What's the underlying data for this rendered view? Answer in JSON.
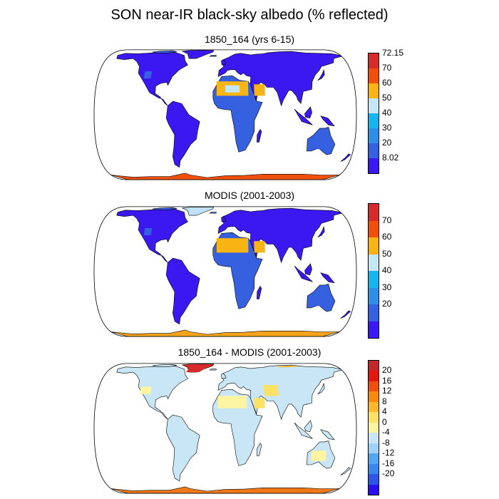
{
  "figure": {
    "title": "SON near-IR black-sky albedo (% reflected)"
  },
  "panels": [
    {
      "title": "1850_164 (yrs 6-15)",
      "colorbar": {
        "colors": [
          "#3b18f0",
          "#3560e0",
          "#2f8fe6",
          "#17b5f0",
          "#c4e6f5",
          "#f7b412",
          "#f0500c",
          "#d62b2b"
        ],
        "labels": [
          "72.15",
          "70",
          "60",
          "50",
          "40",
          "30",
          "20",
          "8.02"
        ]
      }
    },
    {
      "title": "MODIS (2001-2003)",
      "colorbar": {
        "colors": [
          "#3b18f0",
          "#3560e0",
          "#2f8fe6",
          "#17b5f0",
          "#c4e6f5",
          "#f7b412",
          "#f0500c",
          "#d62b2b"
        ],
        "labels": [
          "70",
          "60",
          "50",
          "40",
          "30",
          "20"
        ]
      }
    },
    {
      "title": "1850_164 - MODIS (2001-2003)",
      "colorbar": {
        "colors": [
          "#2a0ff0",
          "#2d55e6",
          "#3a86ea",
          "#52a8f0",
          "#9fd2f5",
          "#c8e6f5",
          "#fff5a0",
          "#fde066",
          "#fbb82c",
          "#f88a10",
          "#ef5010",
          "#e01810",
          "#c2282a"
        ],
        "labels": [
          "20",
          "16",
          "12",
          "8",
          "4",
          "0",
          "-4",
          "-8",
          "-12",
          "-16",
          "-20"
        ]
      }
    }
  ],
  "colors": {
    "ocean": "#ffffff",
    "outline": "#000000",
    "land_low": "#3b18f0",
    "land_mid": "#3560e0",
    "desert": "#f7b412",
    "ice": "#f0500c",
    "diff_neutral": "#c8e6f5"
  }
}
